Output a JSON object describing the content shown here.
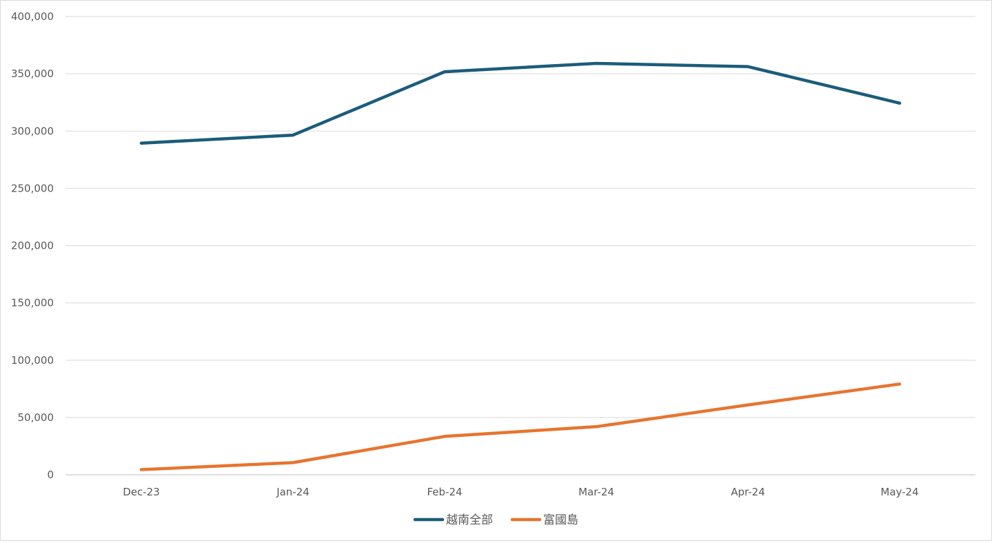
{
  "chart_data": {
    "type": "line",
    "title": "",
    "xlabel": "",
    "ylabel": "",
    "categories": [
      "Dec-23",
      "Jan-24",
      "Feb-24",
      "Mar-24",
      "Apr-24",
      "May-24"
    ],
    "ylim": [
      0,
      400000
    ],
    "yticks": [
      0,
      50000,
      100000,
      150000,
      200000,
      250000,
      300000,
      350000,
      400000
    ],
    "ytick_labels": [
      "0",
      "50,000",
      "100,000",
      "150,000",
      "200,000",
      "250,000",
      "300,000",
      "350,000",
      "400,000"
    ],
    "grid": true,
    "legend_position": "bottom",
    "series": [
      {
        "name": "越南全部",
        "color": "#1b5c7a",
        "values": [
          289500,
          296500,
          351800,
          359100,
          356300,
          324400
        ]
      },
      {
        "name": "富國島",
        "color": "#e8742f",
        "values": [
          4500,
          10600,
          33500,
          42000,
          61000,
          79200
        ]
      }
    ]
  }
}
